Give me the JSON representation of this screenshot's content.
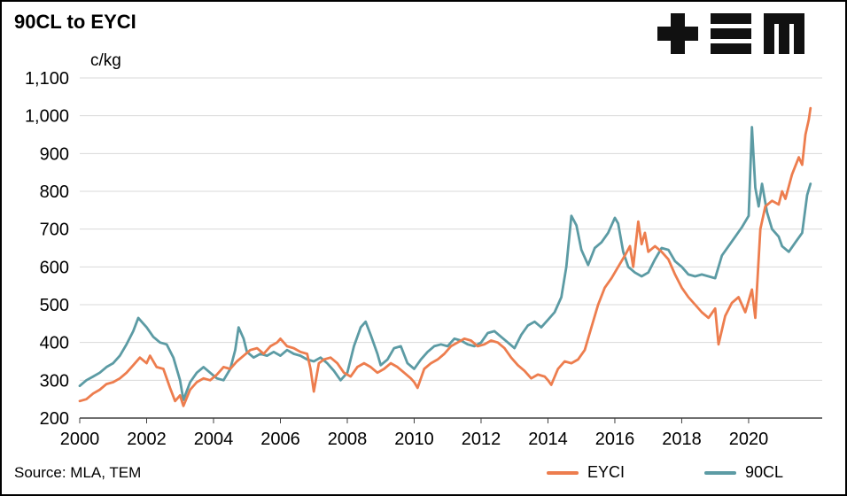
{
  "header": {
    "title": "90CL to EYCI",
    "logo_name": "TEM"
  },
  "source": "Source: MLA, TEM",
  "chart_data": {
    "type": "line",
    "title": "90CL to EYCI",
    "xlabel": "",
    "ylabel": "c/kg",
    "xlim": [
      2000,
      2022.2
    ],
    "ylim": [
      200,
      1100
    ],
    "grid": true,
    "legend_position": "bottom",
    "grid_color": "#d9d9d9",
    "axis_color": "#404040",
    "y_ticks": [
      {
        "value": 200,
        "label": "200"
      },
      {
        "value": 300,
        "label": "300"
      },
      {
        "value": 400,
        "label": "400"
      },
      {
        "value": 500,
        "label": "500"
      },
      {
        "value": 600,
        "label": "600"
      },
      {
        "value": 700,
        "label": "700"
      },
      {
        "value": 800,
        "label": "800"
      },
      {
        "value": 900,
        "label": "900"
      },
      {
        "value": 1000,
        "label": "1,000"
      },
      {
        "value": 1100,
        "label": "1,100"
      }
    ],
    "x_ticks": [
      {
        "value": 2000,
        "label": "2000"
      },
      {
        "value": 2002,
        "label": "2002"
      },
      {
        "value": 2004,
        "label": "2004"
      },
      {
        "value": 2006,
        "label": "2006"
      },
      {
        "value": 2008,
        "label": "2008"
      },
      {
        "value": 2010,
        "label": "2010"
      },
      {
        "value": 2012,
        "label": "2012"
      },
      {
        "value": 2014,
        "label": "2014"
      },
      {
        "value": 2016,
        "label": "2016"
      },
      {
        "value": 2018,
        "label": "2018"
      },
      {
        "value": 2020,
        "label": "2020"
      }
    ],
    "series": [
      {
        "name": "EYCI",
        "color": "#ED7D4E",
        "points": [
          [
            2000.0,
            245
          ],
          [
            2000.2,
            250
          ],
          [
            2000.4,
            265
          ],
          [
            2000.6,
            275
          ],
          [
            2000.8,
            290
          ],
          [
            2001.0,
            295
          ],
          [
            2001.2,
            305
          ],
          [
            2001.4,
            320
          ],
          [
            2001.6,
            340
          ],
          [
            2001.8,
            360
          ],
          [
            2002.0,
            345
          ],
          [
            2002.1,
            365
          ],
          [
            2002.3,
            335
          ],
          [
            2002.5,
            330
          ],
          [
            2002.7,
            280
          ],
          [
            2002.85,
            245
          ],
          [
            2003.0,
            260
          ],
          [
            2003.1,
            232
          ],
          [
            2003.3,
            275
          ],
          [
            2003.5,
            295
          ],
          [
            2003.7,
            305
          ],
          [
            2003.9,
            300
          ],
          [
            2004.1,
            315
          ],
          [
            2004.3,
            335
          ],
          [
            2004.5,
            330
          ],
          [
            2004.7,
            350
          ],
          [
            2004.9,
            365
          ],
          [
            2005.1,
            380
          ],
          [
            2005.3,
            385
          ],
          [
            2005.5,
            370
          ],
          [
            2005.7,
            390
          ],
          [
            2005.9,
            400
          ],
          [
            2006.0,
            410
          ],
          [
            2006.2,
            390
          ],
          [
            2006.4,
            385
          ],
          [
            2006.6,
            375
          ],
          [
            2006.8,
            370
          ],
          [
            2006.9,
            330
          ],
          [
            2007.0,
            270
          ],
          [
            2007.15,
            345
          ],
          [
            2007.3,
            355
          ],
          [
            2007.5,
            360
          ],
          [
            2007.7,
            345
          ],
          [
            2007.9,
            320
          ],
          [
            2008.1,
            310
          ],
          [
            2008.3,
            335
          ],
          [
            2008.5,
            345
          ],
          [
            2008.7,
            335
          ],
          [
            2008.9,
            320
          ],
          [
            2009.1,
            330
          ],
          [
            2009.3,
            345
          ],
          [
            2009.5,
            335
          ],
          [
            2009.7,
            320
          ],
          [
            2009.9,
            305
          ],
          [
            2010.0,
            295
          ],
          [
            2010.1,
            280
          ],
          [
            2010.3,
            330
          ],
          [
            2010.5,
            345
          ],
          [
            2010.7,
            355
          ],
          [
            2010.9,
            370
          ],
          [
            2011.1,
            390
          ],
          [
            2011.3,
            400
          ],
          [
            2011.5,
            410
          ],
          [
            2011.7,
            405
          ],
          [
            2011.9,
            390
          ],
          [
            2012.1,
            395
          ],
          [
            2012.3,
            405
          ],
          [
            2012.5,
            400
          ],
          [
            2012.7,
            385
          ],
          [
            2012.9,
            360
          ],
          [
            2013.1,
            340
          ],
          [
            2013.3,
            325
          ],
          [
            2013.5,
            305
          ],
          [
            2013.7,
            315
          ],
          [
            2013.9,
            310
          ],
          [
            2014.0,
            300
          ],
          [
            2014.1,
            288
          ],
          [
            2014.3,
            330
          ],
          [
            2014.5,
            350
          ],
          [
            2014.7,
            345
          ],
          [
            2014.9,
            355
          ],
          [
            2015.1,
            380
          ],
          [
            2015.3,
            440
          ],
          [
            2015.5,
            500
          ],
          [
            2015.7,
            545
          ],
          [
            2015.9,
            570
          ],
          [
            2016.1,
            600
          ],
          [
            2016.3,
            630
          ],
          [
            2016.45,
            655
          ],
          [
            2016.55,
            600
          ],
          [
            2016.7,
            720
          ],
          [
            2016.8,
            660
          ],
          [
            2016.9,
            690
          ],
          [
            2017.0,
            640
          ],
          [
            2017.2,
            655
          ],
          [
            2017.4,
            640
          ],
          [
            2017.6,
            620
          ],
          [
            2017.8,
            580
          ],
          [
            2018.0,
            545
          ],
          [
            2018.2,
            520
          ],
          [
            2018.4,
            500
          ],
          [
            2018.6,
            480
          ],
          [
            2018.8,
            465
          ],
          [
            2019.0,
            490
          ],
          [
            2019.1,
            395
          ],
          [
            2019.3,
            470
          ],
          [
            2019.5,
            505
          ],
          [
            2019.7,
            520
          ],
          [
            2019.9,
            480
          ],
          [
            2020.0,
            510
          ],
          [
            2020.1,
            540
          ],
          [
            2020.2,
            465
          ],
          [
            2020.35,
            700
          ],
          [
            2020.5,
            760
          ],
          [
            2020.7,
            775
          ],
          [
            2020.9,
            765
          ],
          [
            2021.0,
            800
          ],
          [
            2021.1,
            780
          ],
          [
            2021.3,
            845
          ],
          [
            2021.5,
            890
          ],
          [
            2021.6,
            870
          ],
          [
            2021.7,
            950
          ],
          [
            2021.8,
            990
          ],
          [
            2021.85,
            1020
          ]
        ]
      },
      {
        "name": "90CL",
        "color": "#5C9BA4",
        "points": [
          [
            2000.0,
            285
          ],
          [
            2000.2,
            300
          ],
          [
            2000.4,
            310
          ],
          [
            2000.6,
            320
          ],
          [
            2000.8,
            335
          ],
          [
            2001.0,
            345
          ],
          [
            2001.2,
            365
          ],
          [
            2001.4,
            395
          ],
          [
            2001.6,
            430
          ],
          [
            2001.75,
            465
          ],
          [
            2001.9,
            450
          ],
          [
            2002.0,
            440
          ],
          [
            2002.2,
            415
          ],
          [
            2002.4,
            400
          ],
          [
            2002.6,
            395
          ],
          [
            2002.8,
            360
          ],
          [
            2003.0,
            300
          ],
          [
            2003.1,
            248
          ],
          [
            2003.3,
            295
          ],
          [
            2003.5,
            320
          ],
          [
            2003.7,
            335
          ],
          [
            2003.9,
            320
          ],
          [
            2004.1,
            305
          ],
          [
            2004.3,
            300
          ],
          [
            2004.5,
            330
          ],
          [
            2004.65,
            380
          ],
          [
            2004.75,
            440
          ],
          [
            2004.9,
            410
          ],
          [
            2005.0,
            375
          ],
          [
            2005.2,
            360
          ],
          [
            2005.4,
            370
          ],
          [
            2005.6,
            365
          ],
          [
            2005.8,
            375
          ],
          [
            2006.0,
            365
          ],
          [
            2006.2,
            380
          ],
          [
            2006.4,
            370
          ],
          [
            2006.6,
            365
          ],
          [
            2006.8,
            355
          ],
          [
            2007.0,
            350
          ],
          [
            2007.2,
            360
          ],
          [
            2007.4,
            345
          ],
          [
            2007.6,
            325
          ],
          [
            2007.8,
            300
          ],
          [
            2008.0,
            320
          ],
          [
            2008.2,
            390
          ],
          [
            2008.4,
            440
          ],
          [
            2008.55,
            455
          ],
          [
            2008.7,
            420
          ],
          [
            2008.9,
            370
          ],
          [
            2009.0,
            340
          ],
          [
            2009.2,
            355
          ],
          [
            2009.4,
            385
          ],
          [
            2009.6,
            390
          ],
          [
            2009.8,
            345
          ],
          [
            2010.0,
            330
          ],
          [
            2010.2,
            355
          ],
          [
            2010.4,
            375
          ],
          [
            2010.6,
            390
          ],
          [
            2010.8,
            395
          ],
          [
            2011.0,
            390
          ],
          [
            2011.2,
            410
          ],
          [
            2011.4,
            405
          ],
          [
            2011.6,
            395
          ],
          [
            2011.8,
            390
          ],
          [
            2012.0,
            400
          ],
          [
            2012.2,
            425
          ],
          [
            2012.4,
            430
          ],
          [
            2012.6,
            415
          ],
          [
            2012.8,
            400
          ],
          [
            2013.0,
            385
          ],
          [
            2013.2,
            420
          ],
          [
            2013.4,
            445
          ],
          [
            2013.6,
            455
          ],
          [
            2013.8,
            440
          ],
          [
            2014.0,
            460
          ],
          [
            2014.2,
            480
          ],
          [
            2014.4,
            520
          ],
          [
            2014.55,
            600
          ],
          [
            2014.7,
            735
          ],
          [
            2014.85,
            710
          ],
          [
            2015.0,
            645
          ],
          [
            2015.2,
            605
          ],
          [
            2015.4,
            650
          ],
          [
            2015.6,
            665
          ],
          [
            2015.8,
            690
          ],
          [
            2016.0,
            730
          ],
          [
            2016.1,
            715
          ],
          [
            2016.25,
            640
          ],
          [
            2016.4,
            600
          ],
          [
            2016.6,
            585
          ],
          [
            2016.8,
            575
          ],
          [
            2017.0,
            585
          ],
          [
            2017.2,
            620
          ],
          [
            2017.4,
            650
          ],
          [
            2017.6,
            645
          ],
          [
            2017.8,
            615
          ],
          [
            2018.0,
            600
          ],
          [
            2018.2,
            580
          ],
          [
            2018.4,
            575
          ],
          [
            2018.6,
            580
          ],
          [
            2018.8,
            575
          ],
          [
            2019.0,
            570
          ],
          [
            2019.2,
            630
          ],
          [
            2019.4,
            655
          ],
          [
            2019.6,
            680
          ],
          [
            2019.8,
            705
          ],
          [
            2020.0,
            735
          ],
          [
            2020.1,
            970
          ],
          [
            2020.2,
            810
          ],
          [
            2020.3,
            760
          ],
          [
            2020.4,
            820
          ],
          [
            2020.55,
            745
          ],
          [
            2020.7,
            700
          ],
          [
            2020.9,
            680
          ],
          [
            2021.0,
            655
          ],
          [
            2021.2,
            640
          ],
          [
            2021.4,
            665
          ],
          [
            2021.6,
            690
          ],
          [
            2021.75,
            790
          ],
          [
            2021.85,
            820
          ]
        ]
      }
    ]
  }
}
